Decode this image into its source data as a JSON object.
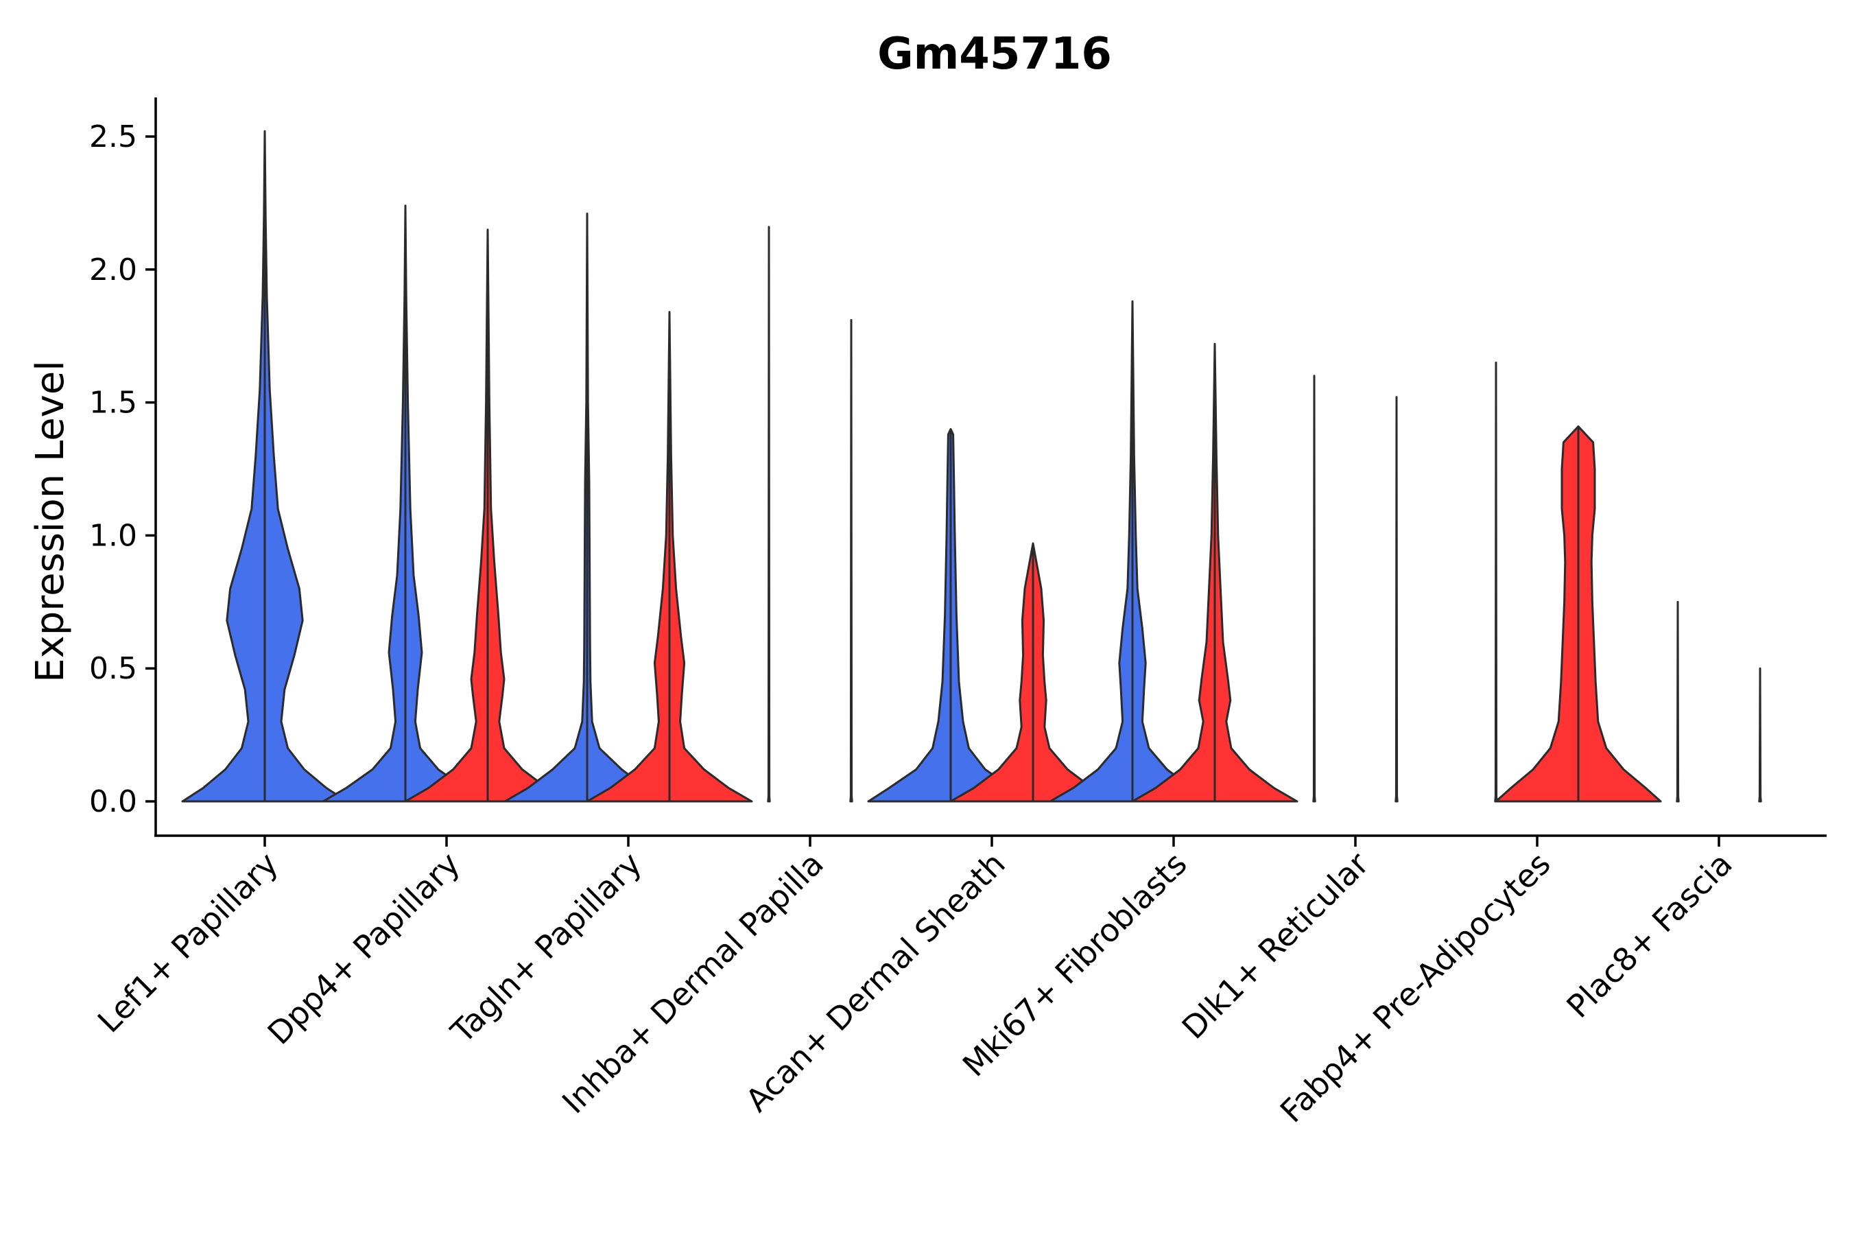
{
  "chart_data": {
    "type": "violin",
    "title": "Gm45716",
    "xlabel": "",
    "ylabel": "Expression Level",
    "ylim": [
      -0.12,
      2.65
    ],
    "yticks": [
      "0.0",
      "0.5",
      "1.0",
      "1.5",
      "2.0",
      "2.5"
    ],
    "ytick_values": [
      0.0,
      0.5,
      1.0,
      1.5,
      2.0,
      2.5
    ],
    "colors": {
      "group_a": "#4571EC",
      "group_b": "#FF3333"
    },
    "categories": [
      "Lef1+ Papillary",
      "Dpp4+ Papillary",
      "Tagln+ Papillary",
      "Inhba+ Dermal Papilla",
      "Acan+ Dermal Sheath",
      "Mki67+ Fibroblasts",
      "Dlk1+ Reticular",
      "Fabp4+ Pre-Adipocytes",
      "Plac8+ Fascia"
    ],
    "series": [
      {
        "name": "group_a",
        "max_values": [
          2.52,
          2.24,
          2.21,
          2.16,
          1.4,
          1.88,
          1.6,
          1.65,
          0.75
        ],
        "profiles": [
          [
            [
              0,
              1.0
            ],
            [
              0.05,
              0.75
            ],
            [
              0.12,
              0.48
            ],
            [
              0.2,
              0.28
            ],
            [
              0.3,
              0.2
            ],
            [
              0.42,
              0.24
            ],
            [
              0.55,
              0.36
            ],
            [
              0.68,
              0.46
            ],
            [
              0.8,
              0.42
            ],
            [
              0.95,
              0.28
            ],
            [
              1.1,
              0.16
            ],
            [
              1.3,
              0.11
            ],
            [
              1.55,
              0.06
            ],
            [
              1.9,
              0.025
            ],
            [
              2.2,
              0.01
            ],
            [
              2.52,
              0
            ]
          ],
          [
            [
              0,
              1.0
            ],
            [
              0.05,
              0.72
            ],
            [
              0.12,
              0.4
            ],
            [
              0.2,
              0.18
            ],
            [
              0.3,
              0.12
            ],
            [
              0.42,
              0.15
            ],
            [
              0.56,
              0.2
            ],
            [
              0.7,
              0.16
            ],
            [
              0.85,
              0.1
            ],
            [
              1.1,
              0.06
            ],
            [
              1.5,
              0.03
            ],
            [
              1.9,
              0.01
            ],
            [
              2.24,
              0
            ]
          ],
          [
            [
              0,
              1.0
            ],
            [
              0.05,
              0.72
            ],
            [
              0.12,
              0.42
            ],
            [
              0.2,
              0.15
            ],
            [
              0.3,
              0.06
            ],
            [
              0.45,
              0.04
            ],
            [
              0.6,
              0.035
            ],
            [
              0.9,
              0.03
            ],
            [
              1.2,
              0.025
            ],
            [
              1.5,
              0.01
            ],
            [
              2.21,
              0
            ]
          ],
          [
            [
              0,
              0.01
            ],
            [
              0.02,
              0.005
            ],
            [
              2.16,
              0
            ]
          ],
          [
            [
              0,
              1.0
            ],
            [
              0.05,
              0.75
            ],
            [
              0.12,
              0.42
            ],
            [
              0.2,
              0.22
            ],
            [
              0.3,
              0.15
            ],
            [
              0.45,
              0.1
            ],
            [
              0.7,
              0.07
            ],
            [
              1.0,
              0.05
            ],
            [
              1.2,
              0.04
            ],
            [
              1.38,
              0.03
            ],
            [
              1.4,
              0
            ]
          ],
          [
            [
              0,
              1.0
            ],
            [
              0.05,
              0.72
            ],
            [
              0.12,
              0.42
            ],
            [
              0.2,
              0.2
            ],
            [
              0.3,
              0.12
            ],
            [
              0.42,
              0.14
            ],
            [
              0.52,
              0.16
            ],
            [
              0.65,
              0.12
            ],
            [
              0.8,
              0.06
            ],
            [
              1.0,
              0.04
            ],
            [
              1.3,
              0.02
            ],
            [
              1.88,
              0
            ]
          ],
          [
            [
              0,
              0.01
            ],
            [
              0.02,
              0.005
            ],
            [
              1.6,
              0
            ]
          ],
          [
            [
              0,
              0.01
            ],
            [
              0.02,
              0.005
            ],
            [
              1.65,
              0
            ]
          ],
          [
            [
              0,
              0.01
            ],
            [
              0.02,
              0.005
            ],
            [
              0.75,
              0
            ]
          ]
        ]
      },
      {
        "name": "group_b",
        "max_values": [
          null,
          2.15,
          1.84,
          1.81,
          0.97,
          1.72,
          1.52,
          1.41,
          0.5
        ],
        "profiles": [
          null,
          [
            [
              0,
              1.0
            ],
            [
              0.05,
              0.72
            ],
            [
              0.12,
              0.42
            ],
            [
              0.2,
              0.2
            ],
            [
              0.3,
              0.14
            ],
            [
              0.4,
              0.18
            ],
            [
              0.46,
              0.2
            ],
            [
              0.56,
              0.16
            ],
            [
              0.7,
              0.13
            ],
            [
              0.9,
              0.08
            ],
            [
              1.1,
              0.04
            ],
            [
              1.5,
              0.02
            ],
            [
              2.15,
              0
            ]
          ],
          [
            [
              0,
              1.0
            ],
            [
              0.05,
              0.72
            ],
            [
              0.12,
              0.42
            ],
            [
              0.2,
              0.18
            ],
            [
              0.3,
              0.13
            ],
            [
              0.4,
              0.15
            ],
            [
              0.52,
              0.18
            ],
            [
              0.62,
              0.14
            ],
            [
              0.8,
              0.08
            ],
            [
              1.0,
              0.04
            ],
            [
              1.3,
              0.02
            ],
            [
              1.84,
              0
            ]
          ],
          [
            [
              0,
              0.01
            ],
            [
              0.02,
              0.005
            ],
            [
              1.81,
              0
            ]
          ],
          [
            [
              0,
              1.0
            ],
            [
              0.05,
              0.72
            ],
            [
              0.12,
              0.42
            ],
            [
              0.2,
              0.2
            ],
            [
              0.28,
              0.14
            ],
            [
              0.38,
              0.16
            ],
            [
              0.45,
              0.14
            ],
            [
              0.55,
              0.12
            ],
            [
              0.68,
              0.13
            ],
            [
              0.8,
              0.1
            ],
            [
              0.97,
              0
            ]
          ],
          [
            [
              0,
              1.0
            ],
            [
              0.05,
              0.72
            ],
            [
              0.12,
              0.42
            ],
            [
              0.2,
              0.2
            ],
            [
              0.3,
              0.14
            ],
            [
              0.38,
              0.19
            ],
            [
              0.46,
              0.16
            ],
            [
              0.6,
              0.1
            ],
            [
              0.8,
              0.07
            ],
            [
              1.0,
              0.04
            ],
            [
              1.3,
              0.02
            ],
            [
              1.72,
              0
            ]
          ],
          [
            [
              0,
              0.01
            ],
            [
              0.02,
              0.005
            ],
            [
              1.52,
              0
            ]
          ],
          [
            [
              0,
              1.0
            ],
            [
              0.05,
              0.82
            ],
            [
              0.12,
              0.55
            ],
            [
              0.2,
              0.34
            ],
            [
              0.3,
              0.24
            ],
            [
              0.45,
              0.21
            ],
            [
              0.6,
              0.19
            ],
            [
              0.75,
              0.17
            ],
            [
              0.9,
              0.16
            ],
            [
              1.0,
              0.17
            ],
            [
              1.1,
              0.2
            ],
            [
              1.25,
              0.2
            ],
            [
              1.35,
              0.18
            ],
            [
              1.41,
              0
            ]
          ],
          [
            [
              0,
              0.01
            ],
            [
              0.02,
              0.005
            ],
            [
              0.5,
              0
            ]
          ]
        ]
      }
    ]
  }
}
